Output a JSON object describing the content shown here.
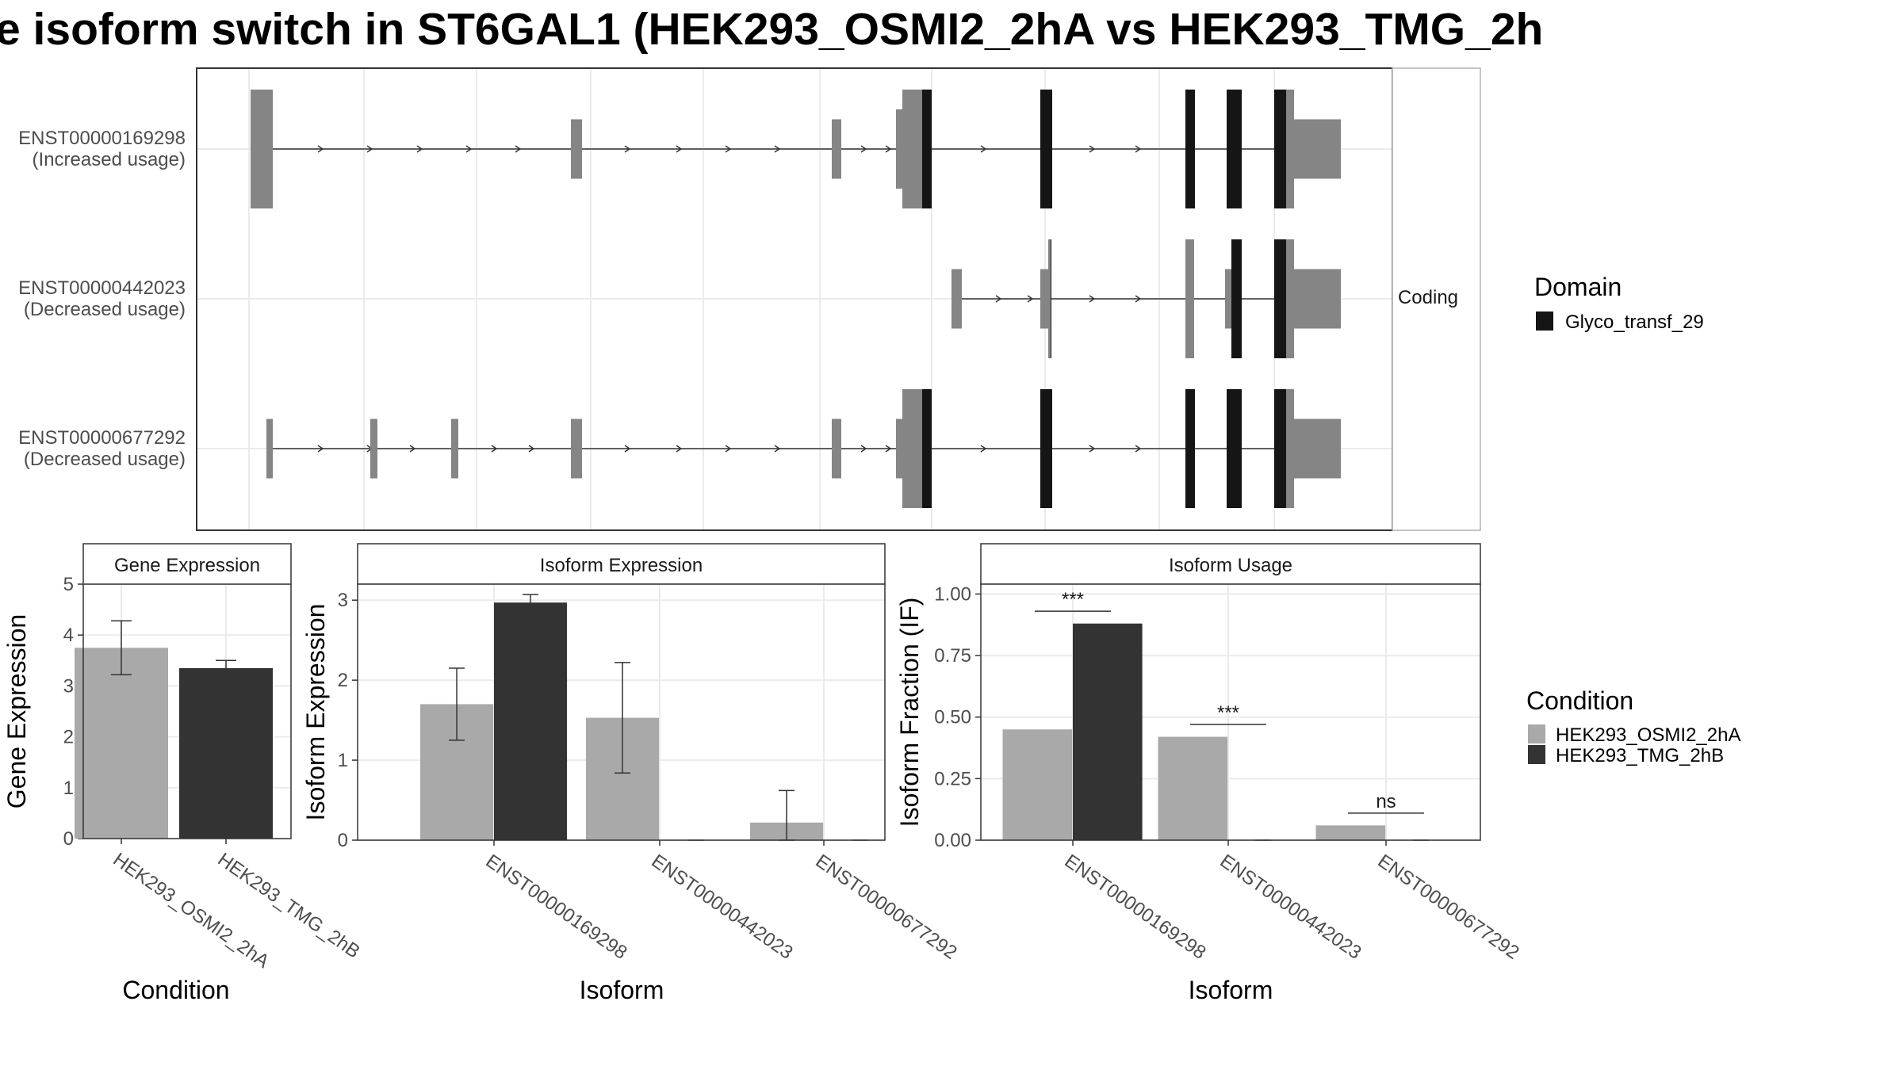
{
  "title": "e isoform switch in ST6GAL1 (HEK293_OSMI2_2hA vs HEK293_TMG_2h",
  "colors": {
    "osmi": "#a9a9a9",
    "tmg": "#333333",
    "utr": "#858585",
    "domain": "#151515",
    "strip_bg": "#ffffff",
    "grid": "#ebebeb"
  },
  "structure": {
    "facet_label": "Coding",
    "legend_title": "Domain",
    "legend_items": [
      "Glyco_transf_29"
    ],
    "transcripts": [
      {
        "id": "ENST00000169298",
        "usage": "(Increased usage)"
      },
      {
        "id": "ENST00000442023",
        "usage": "(Decreased usage)"
      },
      {
        "id": "ENST00000677292",
        "usage": "(Decreased usage)"
      }
    ]
  },
  "condition_legend": {
    "title": "Condition",
    "items": [
      "HEK293_OSMI2_2hA",
      "HEK293_TMG_2hB"
    ]
  },
  "chart_data": [
    {
      "type": "bar",
      "title": "Gene Expression",
      "xlabel": "Condition",
      "ylabel": "Gene Expression",
      "categories": [
        "HEK293_OSMI2_2hA",
        "HEK293_TMG_2hB"
      ],
      "values": [
        3.75,
        3.35
      ],
      "errors": [
        [
          3.22,
          4.28
        ],
        [
          3.2,
          3.5
        ]
      ],
      "ylim": [
        0,
        5
      ],
      "yticks": [
        "0",
        "1",
        "2",
        "3",
        "4",
        "5"
      ],
      "grid": true
    },
    {
      "type": "bar",
      "title": "Isoform Expression",
      "xlabel": "Isoform",
      "ylabel": "Isoform Expression",
      "categories": [
        "ENST00000169298",
        "ENST00000442023",
        "ENST00000677292"
      ],
      "series": [
        {
          "name": "HEK293_OSMI2_2hA",
          "values": [
            1.7,
            1.53,
            0.22
          ],
          "errors": [
            [
              1.25,
              2.15
            ],
            [
              0.84,
              2.22
            ],
            [
              0.0,
              0.62
            ]
          ]
        },
        {
          "name": "HEK293_TMG_2hB",
          "values": [
            2.97,
            0.0,
            0.0
          ],
          "errors": [
            [
              2.88,
              3.07
            ],
            null,
            null
          ]
        }
      ],
      "ylim": [
        0,
        3.2
      ],
      "yticks": [
        "0",
        "1",
        "2",
        "3"
      ],
      "grid": true
    },
    {
      "type": "bar",
      "title": "Isoform Usage",
      "xlabel": "Isoform",
      "ylabel": "Isoform Fraction (IF)",
      "categories": [
        "ENST00000169298",
        "ENST00000442023",
        "ENST00000677292"
      ],
      "series": [
        {
          "name": "HEK293_OSMI2_2hA",
          "values": [
            0.45,
            0.42,
            0.06
          ]
        },
        {
          "name": "HEK293_TMG_2hB",
          "values": [
            0.88,
            0.0,
            0.0
          ]
        }
      ],
      "significance": [
        {
          "label": "***",
          "y": 0.93
        },
        {
          "label": "***",
          "y": 0.47
        },
        {
          "label": "ns",
          "y": 0.11
        }
      ],
      "ylim": [
        0,
        1.04
      ],
      "yticks": [
        "0.00",
        "0.25",
        "0.50",
        "0.75",
        "1.00"
      ],
      "grid": true
    }
  ]
}
